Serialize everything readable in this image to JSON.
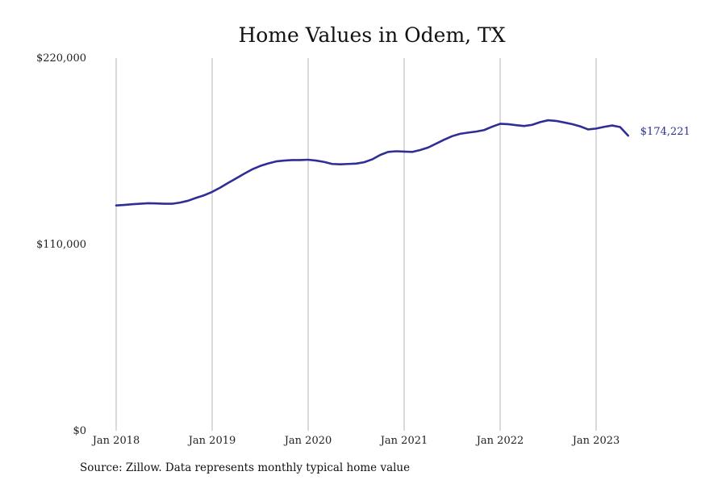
{
  "chart_data": {
    "type": "line",
    "title": "Home Values in Odem, TX",
    "xlabel": "",
    "ylabel": "",
    "ylim": [
      0,
      220000
    ],
    "y_ticks": [
      {
        "value": 0,
        "label": "$0"
      },
      {
        "value": 110000,
        "label": "$110,000"
      },
      {
        "value": 220000,
        "label": "$220,000"
      }
    ],
    "x_ticks": [
      {
        "value": "2018-01",
        "label": "Jan 2018"
      },
      {
        "value": "2019-01",
        "label": "Jan 2019"
      },
      {
        "value": "2020-01",
        "label": "Jan 2020"
      },
      {
        "value": "2021-01",
        "label": "Jan 2021"
      },
      {
        "value": "2022-01",
        "label": "Jan 2022"
      },
      {
        "value": "2023-01",
        "label": "Jan 2023"
      }
    ],
    "grid": "vertical",
    "series": [
      {
        "color": "#2e2e96",
        "x": [
          "2018-01",
          "2018-02",
          "2018-03",
          "2018-04",
          "2018-05",
          "2018-06",
          "2018-07",
          "2018-08",
          "2018-09",
          "2018-10",
          "2018-11",
          "2018-12",
          "2019-01",
          "2019-02",
          "2019-03",
          "2019-04",
          "2019-05",
          "2019-06",
          "2019-07",
          "2019-08",
          "2019-09",
          "2019-10",
          "2019-11",
          "2019-12",
          "2020-01",
          "2020-02",
          "2020-03",
          "2020-04",
          "2020-05",
          "2020-06",
          "2020-07",
          "2020-08",
          "2020-09",
          "2020-10",
          "2020-11",
          "2020-12",
          "2021-01",
          "2021-02",
          "2021-03",
          "2021-04",
          "2021-05",
          "2021-06",
          "2021-07",
          "2021-08",
          "2021-09",
          "2021-10",
          "2021-11",
          "2021-12",
          "2022-01",
          "2022-02",
          "2022-03",
          "2022-04",
          "2022-05",
          "2022-06",
          "2022-07",
          "2022-08",
          "2022-09",
          "2022-10",
          "2022-11",
          "2022-12",
          "2023-01",
          "2023-02",
          "2023-03",
          "2023-04",
          "2023-05"
        ],
        "values": [
          133000,
          133300,
          133700,
          134000,
          134300,
          134200,
          134000,
          134000,
          134700,
          135800,
          137500,
          139000,
          141000,
          143500,
          146300,
          149000,
          151700,
          154300,
          156300,
          157800,
          159000,
          159500,
          159800,
          159800,
          160000,
          159500,
          158700,
          157500,
          157300,
          157500,
          157700,
          158500,
          160200,
          162800,
          164600,
          165000,
          164800,
          164600,
          165700,
          167200,
          169500,
          171800,
          173900,
          175300,
          176000,
          176600,
          177500,
          179500,
          181200,
          181000,
          180400,
          179900,
          180600,
          182200,
          183300,
          182900,
          182000,
          181000,
          179700,
          177900,
          178400,
          179400,
          180200,
          179300,
          174221
        ]
      }
    ],
    "end_label": "$174,221"
  },
  "source": "Source: Zillow. Data represents monthly typical home value"
}
